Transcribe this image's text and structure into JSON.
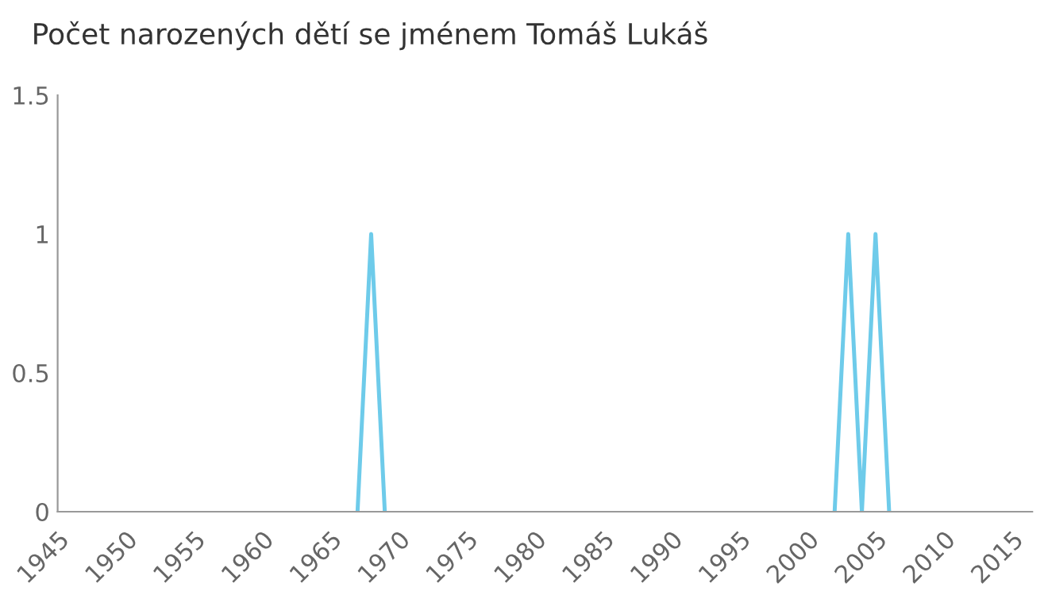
{
  "chart_data": {
    "type": "line",
    "title": "Počet narozených dětí se jménem Tomáš Lukáš",
    "series": [
      {
        "color": "#6ecbea",
        "x": [
          1967,
          1968,
          1969
        ],
        "values": [
          0,
          1,
          0
        ]
      },
      {
        "color": "#6ecbea",
        "x": [
          2002,
          2003,
          2004,
          2005,
          2006
        ],
        "values": [
          0,
          1,
          0,
          1,
          0
        ]
      }
    ],
    "xlim": [
      1945,
      2016.5
    ],
    "xticks": [
      1945,
      1950,
      1955,
      1960,
      1965,
      1970,
      1975,
      1980,
      1985,
      1990,
      1995,
      2000,
      2005,
      2010,
      2015
    ],
    "ylim": [
      0,
      1.5
    ],
    "yticks": [
      0,
      0.5,
      1,
      1.5
    ],
    "grid": false,
    "legend": false,
    "marker": "none",
    "line_style": "solid"
  }
}
